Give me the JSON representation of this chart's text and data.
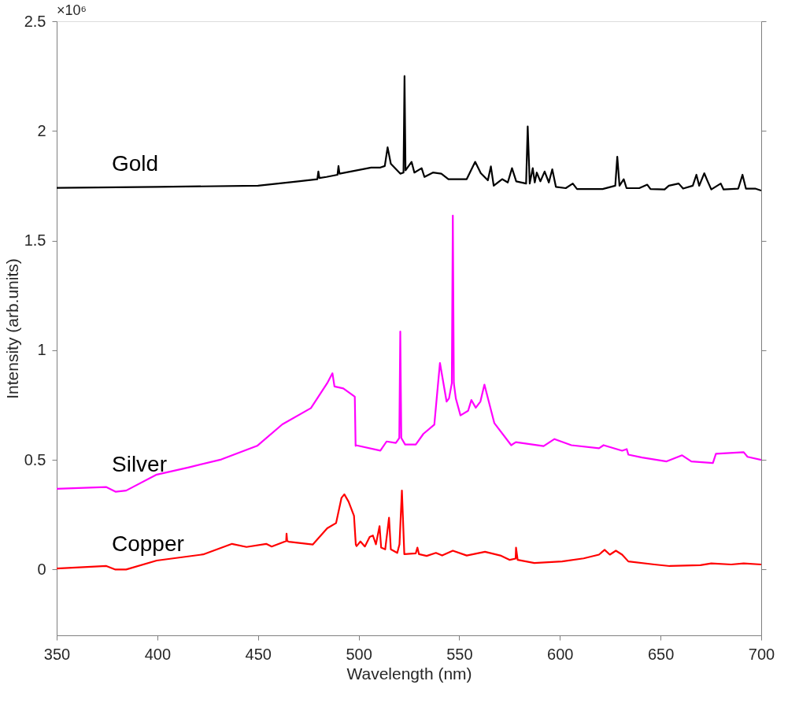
{
  "chart_data": {
    "type": "line",
    "xlabel": "Wavelength (nm)",
    "ylabel": "Intensity (arb.units)",
    "annotations": [
      "×10⁶"
    ],
    "xlim": [
      350,
      700
    ],
    "xticks": [
      350,
      400,
      450,
      500,
      550,
      600,
      650,
      700
    ],
    "ylim": [
      -0.3,
      2.5
    ],
    "yticks": [
      0,
      0.5,
      1,
      1.5,
      2,
      2.5
    ],
    "grid": false,
    "legend": false,
    "marker": "none",
    "line_style": "solid",
    "series": [
      {
        "name": "Gold",
        "color": "#000000",
        "x": [
          350,
          400,
          450,
          470,
          479.5,
          480,
          480.5,
          484,
          489.5,
          490,
          490.5,
          506.2,
          510.8,
          513,
          514.4,
          516,
          520.7,
          522.3,
          522.8,
          523.3,
          526.3,
          527.7,
          531.3,
          532.7,
          536.9,
          541.1,
          544.6,
          553.7,
          557.9,
          560.7,
          564.2,
          565.7,
          567.1,
          571.3,
          574.1,
          576.2,
          578.3,
          583.2,
          584,
          585,
          586.5,
          587.5,
          588.5,
          590.3,
          592.4,
          594.5,
          596.2,
          598,
          602.9,
          606.4,
          608.5,
          621.2,
          627.5,
          628.5,
          629.6,
          631.7,
          633.1,
          639.4,
          643.4,
          645,
          652,
          654.1,
          659,
          661.2,
          666,
          667.8,
          669.2,
          671.7,
          673.4,
          675.2,
          679.9,
          681.3,
          688.6,
          690.7,
          692.4,
          697,
          700
        ],
        "values": [
          1.74,
          1.745,
          1.75,
          1.77,
          1.78,
          1.815,
          1.785,
          1.79,
          1.8,
          1.84,
          1.805,
          1.833,
          1.833,
          1.84,
          1.925,
          1.85,
          1.805,
          1.81,
          2.25,
          1.82,
          1.859,
          1.81,
          1.83,
          1.79,
          1.81,
          1.805,
          1.78,
          1.78,
          1.859,
          1.807,
          1.775,
          1.838,
          1.75,
          1.78,
          1.765,
          1.83,
          1.77,
          1.76,
          2.02,
          1.76,
          1.83,
          1.765,
          1.81,
          1.77,
          1.815,
          1.765,
          1.825,
          1.745,
          1.739,
          1.76,
          1.735,
          1.735,
          1.75,
          1.882,
          1.75,
          1.78,
          1.739,
          1.739,
          1.755,
          1.735,
          1.733,
          1.75,
          1.76,
          1.737,
          1.75,
          1.8,
          1.75,
          1.807,
          1.77,
          1.733,
          1.76,
          1.733,
          1.737,
          1.8,
          1.737,
          1.737,
          1.728
        ]
      },
      {
        "name": "Silver",
        "color": "#ff00ff",
        "x": [
          350,
          374.7,
          379.2,
          384.5,
          399.7,
          415.7,
          431.8,
          449.6,
          462.1,
          476.3,
          484.4,
          487,
          488,
          492.4,
          498.1,
          498.5,
          498.6,
          510.8,
          513.9,
          518.5,
          520.2,
          520.7,
          521.2,
          523.1,
          528.4,
          532.2,
          537.6,
          540.4,
          543.7,
          544.9,
          546.3,
          546.8,
          547.3,
          548.3,
          550.6,
          554.4,
          556,
          558.2,
          560.5,
          562.5,
          567.4,
          575.8,
          578.1,
          591.9,
          597.3,
          605.7,
          619.4,
          621.7,
          630.9,
          633.2,
          634,
          640.8,
          653,
          660.7,
          665.3,
          676,
          677.5,
          691.3,
          693.2,
          700
        ],
        "values": [
          0.368,
          0.376,
          0.355,
          0.36,
          0.433,
          0.466,
          0.502,
          0.564,
          0.662,
          0.736,
          0.85,
          0.895,
          0.835,
          0.826,
          0.788,
          0.564,
          0.567,
          0.542,
          0.584,
          0.577,
          0.6,
          1.085,
          0.6,
          0.57,
          0.57,
          0.619,
          0.661,
          0.942,
          0.766,
          0.78,
          0.85,
          1.614,
          0.85,
          0.78,
          0.703,
          0.724,
          0.773,
          0.738,
          0.766,
          0.843,
          0.668,
          0.567,
          0.581,
          0.563,
          0.595,
          0.567,
          0.553,
          0.567,
          0.542,
          0.549,
          0.524,
          0.511,
          0.493,
          0.521,
          0.493,
          0.486,
          0.528,
          0.535,
          0.514,
          0.5
        ]
      },
      {
        "name": "Copper",
        "color": "#ff0000",
        "x": [
          350,
          374.7,
          379.2,
          384.5,
          399.7,
          422.8,
          437.1,
          444.3,
          454.1,
          456.8,
          464,
          464.2,
          464.5,
          465.3,
          477.2,
          484.4,
          488.8,
          491.5,
          492.9,
          495,
          497.7,
          498.6,
          499,
          500.9,
          503.1,
          505.5,
          507.1,
          508.6,
          510.4,
          511.2,
          513.2,
          515.1,
          516,
          519.2,
          520.3,
          521.5,
          522.7,
          528.4,
          529.2,
          530,
          533.8,
          538.4,
          541.5,
          546.8,
          553.7,
          562.8,
          570.4,
          575.1,
          578,
          578.2,
          579,
          587.3,
          601.1,
          611.8,
          619.4,
          622.2,
          624.8,
          627.8,
          630.9,
          634,
          646.9,
          654.5,
          669.8,
          675.2,
          685.1,
          691.3,
          700
        ],
        "values": [
          0.005,
          0.016,
          0.0,
          0.0,
          0.041,
          0.069,
          0.117,
          0.103,
          0.117,
          0.105,
          0.13,
          0.164,
          0.13,
          0.127,
          0.114,
          0.188,
          0.212,
          0.327,
          0.343,
          0.31,
          0.245,
          0.114,
          0.107,
          0.128,
          0.105,
          0.149,
          0.155,
          0.115,
          0.198,
          0.1,
          0.092,
          0.236,
          0.092,
          0.076,
          0.115,
          0.36,
          0.07,
          0.074,
          0.1,
          0.07,
          0.062,
          0.076,
          0.064,
          0.086,
          0.064,
          0.081,
          0.064,
          0.044,
          0.05,
          0.1,
          0.044,
          0.03,
          0.037,
          0.051,
          0.068,
          0.09,
          0.068,
          0.086,
          0.068,
          0.037,
          0.023,
          0.016,
          0.02,
          0.028,
          0.023,
          0.028,
          0.023
        ]
      }
    ]
  }
}
